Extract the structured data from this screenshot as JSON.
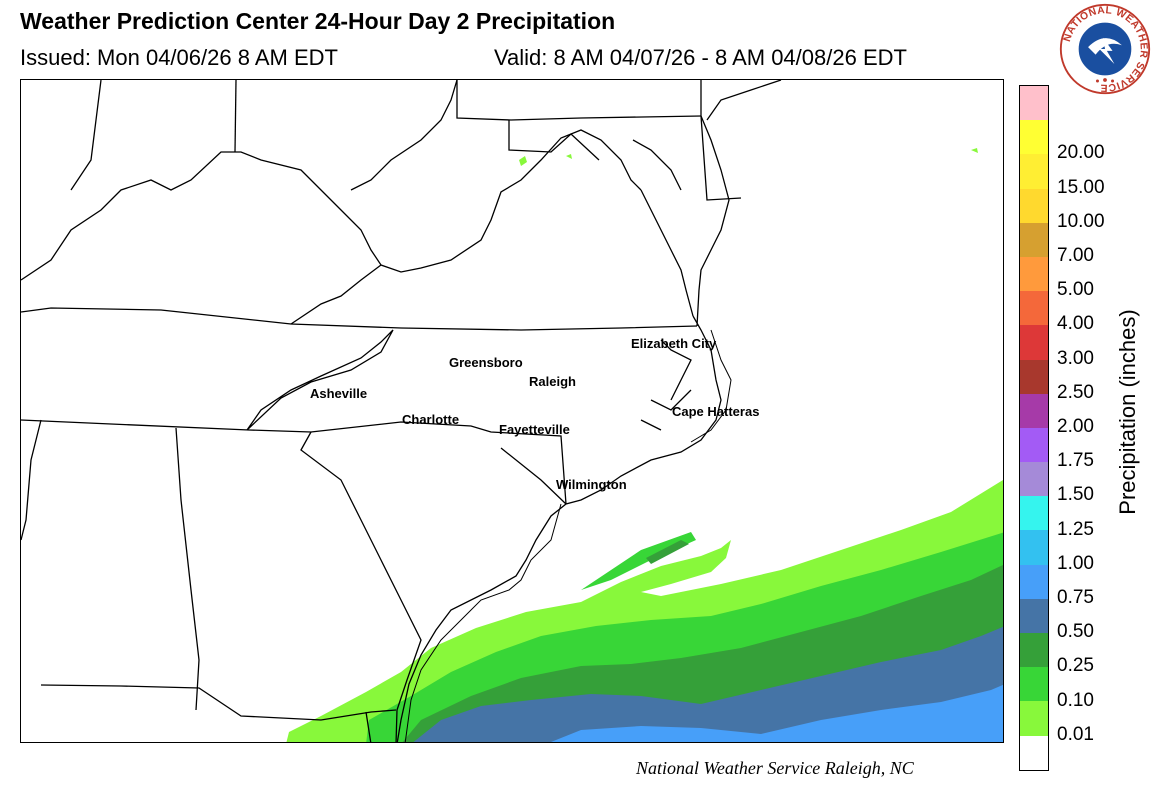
{
  "header": {
    "title": "Weather Prediction Center 24-Hour Day 2 Precipitation",
    "issued": "Issued: Mon 04/06/26 8 AM EDT",
    "valid": "Valid: 8 AM 04/07/26 - 8 AM 04/08/26 EDT"
  },
  "logo": {
    "text": "NATIONAL WEATHER SERVICE",
    "icon": "nws-logo-icon"
  },
  "map": {
    "cities": [
      {
        "name": "Elizabeth City"
      },
      {
        "name": "Greensboro"
      },
      {
        "name": "Raleigh"
      },
      {
        "name": "Asheville"
      },
      {
        "name": "Cape Hatteras"
      },
      {
        "name": "Charlotte"
      },
      {
        "name": "Fayetteville"
      },
      {
        "name": "Wilmington"
      }
    ]
  },
  "legend": {
    "label": "Precipitation (inches)",
    "bins": [
      {
        "label": "",
        "color": "#ffc0cb"
      },
      {
        "label": "20.00",
        "color": "#ffff33"
      },
      {
        "label": "15.00",
        "color": "#ffee33"
      },
      {
        "label": "10.00",
        "color": "#ffd92e"
      },
      {
        "label": "7.00",
        "color": "#d6a030"
      },
      {
        "label": "5.00",
        "color": "#ff9a3c"
      },
      {
        "label": "4.00",
        "color": "#f4683a"
      },
      {
        "label": "3.00",
        "color": "#dd3838"
      },
      {
        "label": "2.50",
        "color": "#a8382d"
      },
      {
        "label": "2.00",
        "color": "#a63aa8"
      },
      {
        "label": "1.75",
        "color": "#a35bf5"
      },
      {
        "label": "1.50",
        "color": "#a58ad8"
      },
      {
        "label": "1.25",
        "color": "#35f4ee"
      },
      {
        "label": "1.00",
        "color": "#33c1f0"
      },
      {
        "label": "0.75",
        "color": "#479ff9"
      },
      {
        "label": "0.50",
        "color": "#4574a6"
      },
      {
        "label": "0.25",
        "color": "#35a039"
      },
      {
        "label": "0.10",
        "color": "#38d637"
      },
      {
        "label": "0.01",
        "color": "#88f83b"
      },
      {
        "label": "",
        "color": "#ffffff"
      }
    ]
  },
  "footer": {
    "credit": "National Weather Service Raleigh, NC"
  }
}
